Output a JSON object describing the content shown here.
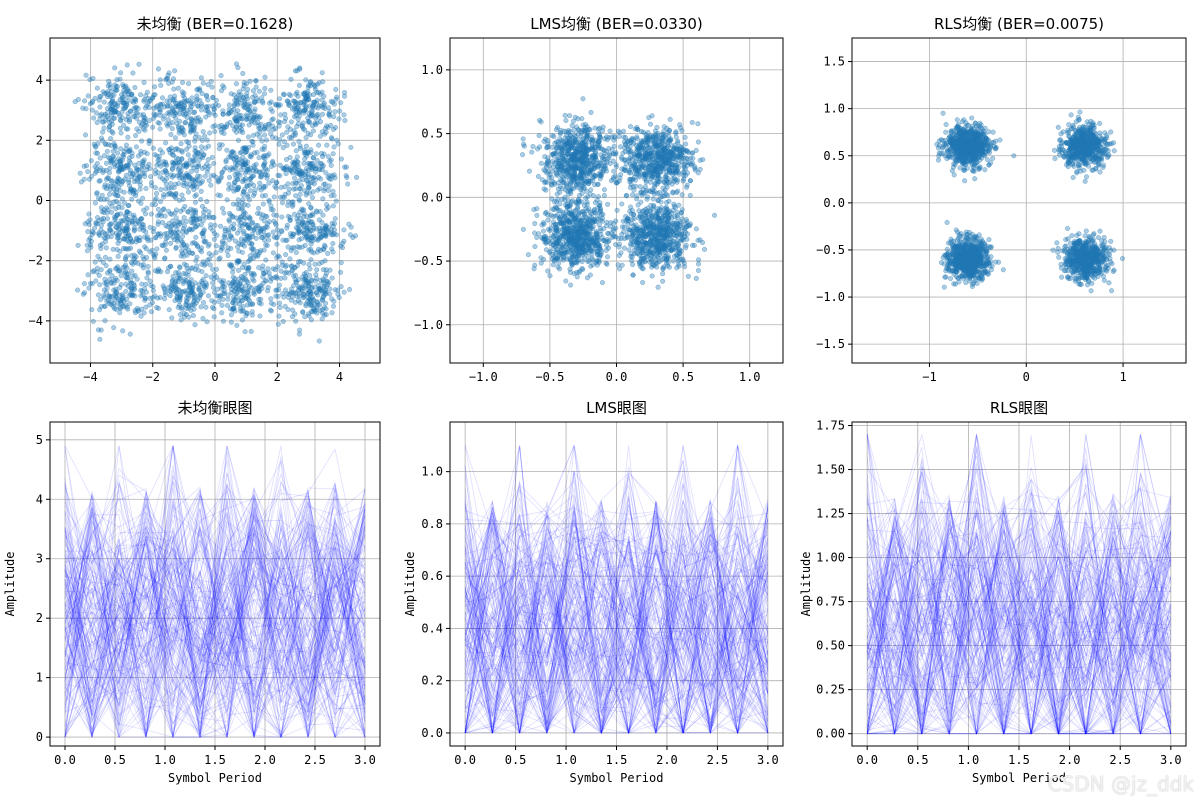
{
  "watermark": "CSDN @jz_ddk",
  "chart_data": [
    {
      "type": "scatter",
      "title": "未均衡 (BER=0.1628)",
      "xlabel": "",
      "ylabel": "",
      "xlim": [
        -5.3,
        5.3
      ],
      "ylim": [
        -5.4,
        5.4
      ],
      "xticks": [
        -4,
        -2,
        0,
        2,
        4
      ],
      "xtick_labels": [
        "−4",
        "−2",
        "0",
        "2",
        "4"
      ],
      "yticks": [
        -4,
        -2,
        0,
        2,
        4
      ],
      "ytick_labels": [
        "−4",
        "−2",
        "0",
        "2",
        "4"
      ],
      "grid": true,
      "color": "#1f77b4",
      "distribution": {
        "kind": "qam_grid",
        "levels": [
          -3,
          -1,
          1,
          3
        ],
        "spread": 1.0,
        "points": 3000
      }
    },
    {
      "type": "scatter",
      "title": "LMS均衡 (BER=0.0330)",
      "xlabel": "",
      "ylabel": "",
      "xlim": [
        -1.25,
        1.25
      ],
      "ylim": [
        -1.3,
        1.25
      ],
      "xticks": [
        -1.0,
        -0.5,
        0.0,
        0.5,
        1.0
      ],
      "xtick_labels": [
        "−1.0",
        "−0.5",
        "0.0",
        "0.5",
        "1.0"
      ],
      "yticks": [
        -1.0,
        -0.5,
        0.0,
        0.5,
        1.0
      ],
      "ytick_labels": [
        "−1.0",
        "−0.5",
        "0.0",
        "0.5",
        "1.0"
      ],
      "grid": true,
      "color": "#1f77b4",
      "distribution": {
        "kind": "qpsk",
        "levels": [
          -0.3,
          0.3
        ],
        "spread": 0.24,
        "points": 2500
      }
    },
    {
      "type": "scatter",
      "title": "RLS均衡 (BER=0.0075)",
      "xlabel": "",
      "ylabel": "",
      "xlim": [
        -1.8,
        1.65
      ],
      "ylim": [
        -1.7,
        1.75
      ],
      "xticks": [
        -1,
        0,
        1
      ],
      "xtick_labels": [
        "−1",
        "0",
        "1"
      ],
      "yticks": [
        -1.5,
        -1.0,
        -0.5,
        0.0,
        0.5,
        1.0,
        1.5
      ],
      "ytick_labels": [
        "−1.5",
        "−1.0",
        "−0.5",
        "0.0",
        "0.5",
        "1.0",
        "1.5"
      ],
      "grid": true,
      "color": "#1f77b4",
      "distribution": {
        "kind": "qpsk",
        "levels": [
          -0.6,
          0.6
        ],
        "spread": 0.2,
        "points": 2500
      }
    },
    {
      "type": "line",
      "title": "未均衡眼图",
      "xlabel": "Symbol Period",
      "ylabel": "Amplitude",
      "xlim": [
        -0.15,
        3.15
      ],
      "ylim": [
        -0.15,
        5.3
      ],
      "xticks": [
        0,
        0.5,
        1,
        1.5,
        2,
        2.5,
        3
      ],
      "xtick_labels": [
        "0.0",
        "0.5",
        "1.0",
        "1.5",
        "2.0",
        "2.5",
        "3.0"
      ],
      "yticks": [
        0,
        1,
        2,
        3,
        4,
        5
      ],
      "ytick_labels": [
        "0",
        "1",
        "2",
        "3",
        "4",
        "5"
      ],
      "grid": true,
      "color": "#0000ff",
      "eye": {
        "peak_x": [
          0,
          0.27,
          0.54,
          0.81,
          1.08,
          1.35,
          1.62,
          1.89,
          2.16,
          2.43,
          2.7,
          3.0
        ],
        "min": 0,
        "max": 4.9,
        "center": 2.0,
        "traces": 180
      }
    },
    {
      "type": "line",
      "title": "LMS眼图",
      "xlabel": "Symbol Period",
      "ylabel": "Amplitude",
      "xlim": [
        -0.15,
        3.15
      ],
      "ylim": [
        -0.05,
        1.19
      ],
      "xticks": [
        0,
        0.5,
        1,
        1.5,
        2,
        2.5,
        3
      ],
      "xtick_labels": [
        "0.0",
        "0.5",
        "1.0",
        "1.5",
        "2.0",
        "2.5",
        "3.0"
      ],
      "yticks": [
        0,
        0.2,
        0.4,
        0.6,
        0.8,
        1.0
      ],
      "ytick_labels": [
        "0.0",
        "0.2",
        "0.4",
        "0.6",
        "0.8",
        "1.0"
      ],
      "grid": true,
      "color": "#0000ff",
      "eye": {
        "peak_x": [
          0,
          0.27,
          0.54,
          0.81,
          1.08,
          1.35,
          1.62,
          1.89,
          2.16,
          2.43,
          2.7,
          3.0
        ],
        "min": 0,
        "max": 1.1,
        "center": 0.4,
        "traces": 180
      }
    },
    {
      "type": "line",
      "title": "RLS眼图",
      "xlabel": "Symbol Period",
      "ylabel": "Amplitude",
      "xlim": [
        -0.15,
        3.15
      ],
      "ylim": [
        -0.07,
        1.77
      ],
      "xticks": [
        0,
        0.5,
        1,
        1.5,
        2,
        2.5,
        3
      ],
      "xtick_labels": [
        "0.0",
        "0.5",
        "1.0",
        "1.5",
        "2.0",
        "2.5",
        "3.0"
      ],
      "yticks": [
        0,
        0.25,
        0.5,
        0.75,
        1.0,
        1.25,
        1.5,
        1.75
      ],
      "ytick_labels": [
        "0.00",
        "0.25",
        "0.50",
        "0.75",
        "1.00",
        "1.25",
        "1.50",
        "1.75"
      ],
      "grid": true,
      "color": "#0000ff",
      "eye": {
        "peak_x": [
          0,
          0.27,
          0.54,
          0.81,
          1.08,
          1.35,
          1.62,
          1.89,
          2.16,
          2.43,
          2.7,
          3.0
        ],
        "min": 0,
        "max": 1.7,
        "center": 0.6,
        "traces": 180
      }
    }
  ]
}
